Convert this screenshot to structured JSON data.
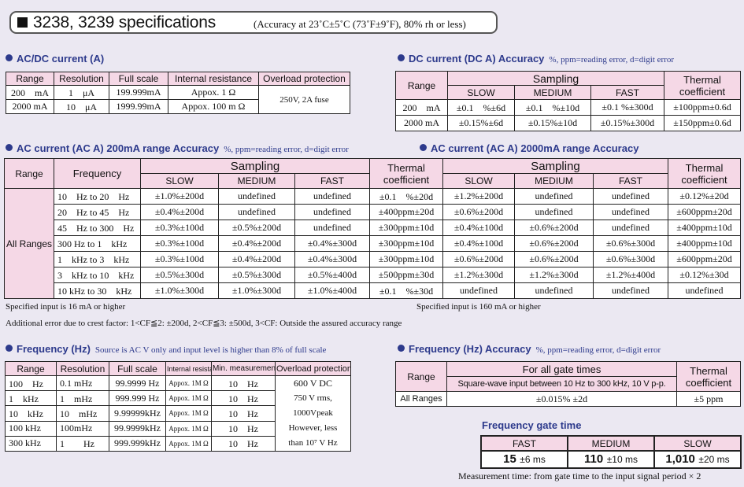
{
  "title": {
    "main": "3238, 3239 specifications",
    "sub": "(Accuracy at 23˚C±5˚C (73˚F±9˚F), 80% rh or less)"
  },
  "acdc_current": {
    "heading": "AC/DC current (A)",
    "headers": [
      "Range",
      "Resolution",
      "Full scale",
      "Internal resistance",
      "Overload protection"
    ],
    "rows": [
      [
        "200　mA",
        "1　μA",
        "199.999mA",
        "Appox. 1 Ω"
      ],
      [
        "2000 mA",
        "10　μA",
        "1999.99mA",
        "Appox. 100 m Ω"
      ]
    ],
    "overload": "250V, 2A fuse"
  },
  "dc_current_acc": {
    "heading": "DC current (DC A) Accuracy",
    "note": "%, ppm=reading error, d=digit error",
    "range_label": "Range",
    "sampling_label": "Sampling",
    "thermal_label": "Thermal coefficient",
    "speeds": [
      "SLOW",
      "MEDIUM",
      "FAST"
    ],
    "rows": [
      [
        "200　mA",
        "±0.1　%±6d",
        "±0.1　%±10d",
        "±0.1 %±300d",
        "±100ppm±0.6d"
      ],
      [
        "2000 mA",
        "±0.15%±6d",
        "±0.15%±10d",
        "±0.15%±300d",
        "±150ppm±0.6d"
      ]
    ]
  },
  "ac200": {
    "heading": "AC current (AC A) 200mA range Accuracy",
    "note": "%, ppm=reading error, d=digit error",
    "range_label": "Range",
    "freq_label": "Frequency",
    "sampling_label": "Sampling",
    "thermal_label": "Thermal coefficient",
    "speeds": [
      "SLOW",
      "MEDIUM",
      "FAST"
    ],
    "all_ranges": "All Ranges",
    "rows": [
      [
        "10　Hz to 20　Hz",
        "±1.0%±200d",
        "undefined",
        "undefined",
        "±0.1　%±20d"
      ],
      [
        "20　Hz to 45　Hz",
        "±0.4%±200d",
        "undefined",
        "undefined",
        "±400ppm±20d"
      ],
      [
        "45　Hz to 300　Hz",
        "±0.3%±100d",
        "±0.5%±200d",
        "undefined",
        "±300ppm±10d"
      ],
      [
        "300 Hz to 1　kHz",
        "±0.3%±100d",
        "±0.4%±200d",
        "±0.4%±300d",
        "±300ppm±10d"
      ],
      [
        "1　kHz to 3　kHz",
        "±0.3%±100d",
        "±0.4%±200d",
        "±0.4%±300d",
        "±300ppm±10d"
      ],
      [
        "3　kHz to 10　kHz",
        "±0.5%±300d",
        "±0.5%±300d",
        "±0.5%±400d",
        "±500ppm±30d"
      ],
      [
        "10 kHz to 30　kHz",
        "±1.0%±300d",
        "±1.0%±300d",
        "±1.0%±400d",
        "±0.1　%±30d"
      ]
    ],
    "specified": "Specified input is 16 mA or higher"
  },
  "ac2000": {
    "heading": "AC current (AC A) 2000mA range Accuracy",
    "sampling_label": "Sampling",
    "thermal_label": "Thermal coefficient",
    "speeds": [
      "SLOW",
      "MEDIUM",
      "FAST"
    ],
    "rows": [
      [
        "±1.2%±200d",
        "undefined",
        "undefined",
        "±0.12%±20d"
      ],
      [
        "±0.6%±200d",
        "undefined",
        "undefined",
        "±600ppm±20d"
      ],
      [
        "±0.4%±100d",
        "±0.6%±200d",
        "undefined",
        "±400ppm±10d"
      ],
      [
        "±0.4%±100d",
        "±0.6%±200d",
        "±0.6%±300d",
        "±400ppm±10d"
      ],
      [
        "±0.6%±200d",
        "±0.6%±200d",
        "±0.6%±300d",
        "±600ppm±20d"
      ],
      [
        "±1.2%±300d",
        "±1.2%±300d",
        "±1.2%±400d",
        "±0.12%±30d"
      ],
      [
        "undefined",
        "undefined",
        "undefined",
        "undefined"
      ]
    ],
    "specified": "Specified input is 160 mA or higher"
  },
  "crest_note": "Additional error due to crest factor: 1<CF≦2: ±200d, 2<CF≦3: ±500d, 3<CF: Outside the assured accuracy range",
  "frequency": {
    "heading": "Frequency (Hz)",
    "note": "Source is AC V only and input level is higher than 8% of full scale",
    "headers": [
      "Range",
      "Resolution",
      "Full scale",
      "Internal resistance",
      "Min. measurement",
      "Overload protection"
    ],
    "rows": [
      [
        "100　Hz",
        "0.1 mHz",
        "99.9999 Hz",
        "Appox. 1M Ω",
        "10　Hz"
      ],
      [
        "1　kHz",
        "1　mHz",
        "999.999 Hz",
        "Appox. 1M Ω",
        "10　Hz"
      ],
      [
        "10　kHz",
        "10　mHz",
        "9.99999kHz",
        "Appox. 1M Ω",
        "10　Hz"
      ],
      [
        "100 kHz",
        "100mHz",
        "99.9999kHz",
        "Appox. 1M Ω",
        "10　Hz"
      ],
      [
        "300 kHz",
        "1　　Hz",
        "999.999kHz",
        "Appox. 1M Ω",
        "10　Hz"
      ]
    ],
    "overload_lines": [
      "600 V DC",
      "750 V rms,",
      "1000Vpeak",
      "However, less",
      "than 10⁷ V Hz"
    ]
  },
  "freq_acc": {
    "heading": "Frequency (Hz) Accuracy",
    "note": "%, ppm=reading error, d=digit error",
    "range_label": "Range",
    "gate_label": "For all gate times",
    "square_label": "Square-wave input between 10 Hz to 300 kHz, 10 V p-p.",
    "thermal_label": "Thermal coefficient",
    "row": [
      "All Ranges",
      "±0.015% ±2d",
      "±5 ppm"
    ]
  },
  "gate_time": {
    "heading": "Frequency gate time",
    "headers": [
      "FAST",
      "MEDIUM",
      "SLOW"
    ],
    "main": [
      "15",
      "110",
      "1,010"
    ],
    "tol": [
      "±6 ms",
      "±10 ms",
      "±20 ms"
    ],
    "note": "Measurement time: from gate time to the input signal period × 2"
  }
}
